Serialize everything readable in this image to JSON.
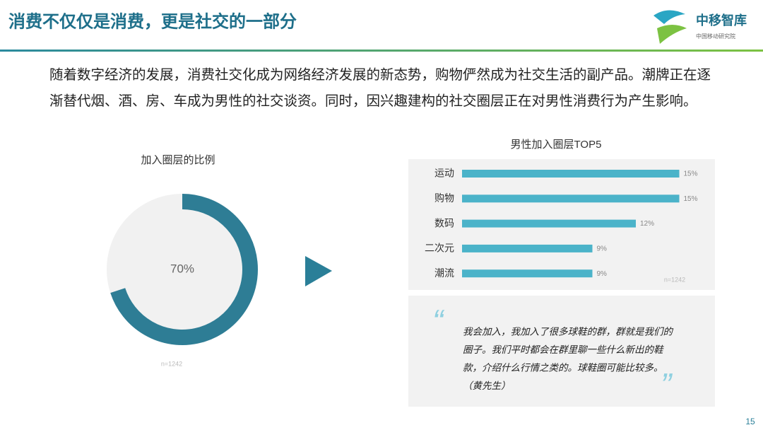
{
  "header": {
    "title": "消费不仅仅是消费，更是社交的一部分",
    "logo": "中移智库",
    "logo_sub": "中国移动研究院"
  },
  "paragraph": "随着数字经济的发展，消费社交化成为网络经济发展的新态势，购物俨然成为社交生活的副产品。潮牌正在逐渐替代烟、酒、房、车成为男性的社交谈资。同时，因兴趣建构的社交圈层正在对男性消费行为产生影响。",
  "chart_data": [
    {
      "type": "pie",
      "title": "加入圈层的比例",
      "values": [
        70
      ],
      "value_labels": [
        "70%"
      ],
      "color": "#2e7d95",
      "note": "n=1242"
    },
    {
      "type": "bar",
      "orientation": "horizontal",
      "title": "男性加入圈层TOP5",
      "categories": [
        "运动",
        "购物",
        "数码",
        "二次元",
        "潮流"
      ],
      "values": [
        15,
        15,
        12,
        9,
        9
      ],
      "value_labels": [
        "15%",
        "15%",
        "12%",
        "9%",
        "9%"
      ],
      "color": "#4bb3c9",
      "note": "n=1242"
    }
  ],
  "quote": {
    "open": "“",
    "close": "”",
    "lines": [
      "我会加入，我加入了很多球鞋的群，群就是我们的",
      "圈子。我们平时都会在群里聊一些什么新出的鞋",
      "款，介绍什么行情之类的。球鞋圈可能比较多。",
      "（黄先生）"
    ]
  },
  "page_number": "15"
}
